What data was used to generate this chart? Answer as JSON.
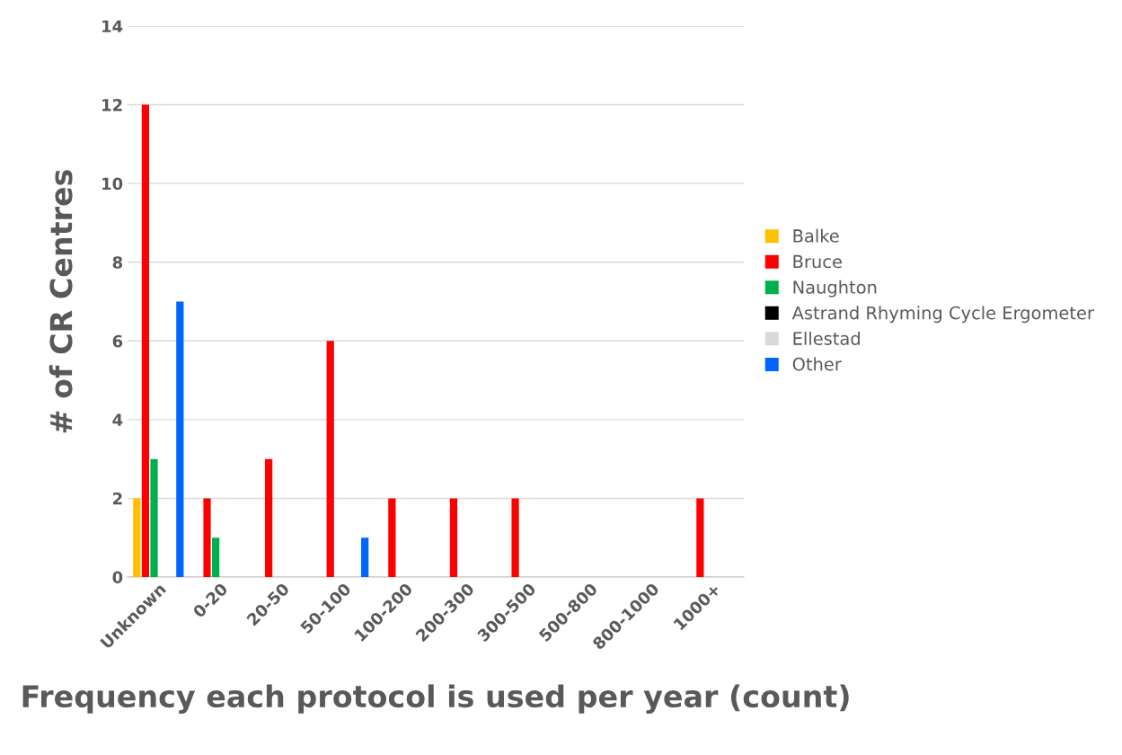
{
  "chart_data": {
    "type": "bar",
    "xlabel": "Frequency each protocol is used per year (count)",
    "ylabel": "# of CR Centres",
    "categories": [
      "Unknown",
      "0-20",
      "20-50",
      "50-100",
      "100-200",
      "200-300",
      "300-500",
      "500-800",
      "800-1000",
      "1000+"
    ],
    "series": [
      {
        "name": "Balke",
        "color": "#ffc000",
        "values": [
          2,
          0,
          0,
          0,
          0,
          0,
          0,
          0,
          0,
          0
        ]
      },
      {
        "name": "Bruce",
        "color": "#ff0000",
        "values": [
          12,
          2,
          3,
          6,
          2,
          2,
          2,
          0,
          0,
          2
        ]
      },
      {
        "name": "Naughton",
        "color": "#00b050",
        "values": [
          3,
          1,
          0,
          0,
          0,
          0,
          0,
          0,
          0,
          0
        ]
      },
      {
        "name": "Astrand Rhyming Cycle Ergometer",
        "color": "#000000",
        "values": [
          0,
          0,
          0,
          0,
          0,
          0,
          0,
          0,
          0,
          0
        ]
      },
      {
        "name": "Ellestad",
        "color": "#d9d9d9",
        "values": [
          0,
          0,
          0,
          0,
          0,
          0,
          0,
          0,
          0,
          0
        ]
      },
      {
        "name": "Other",
        "color": "#0066ff",
        "values": [
          7,
          0,
          0,
          1,
          0,
          0,
          0,
          0,
          0,
          0
        ]
      }
    ],
    "ylim": [
      0,
      14
    ],
    "yticks": [
      0,
      2,
      4,
      6,
      8,
      10,
      12,
      14
    ],
    "grid": "y",
    "legend": "right"
  }
}
